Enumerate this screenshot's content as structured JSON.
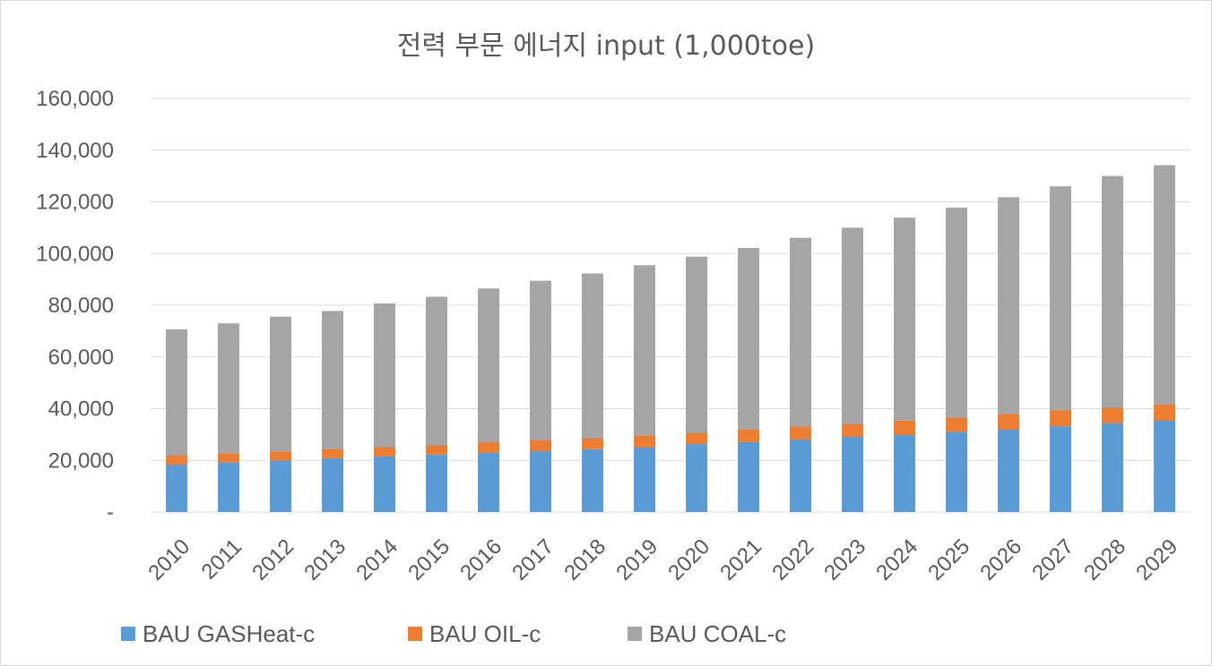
{
  "chart_data": {
    "type": "bar",
    "stacked": true,
    "title": "전력 부문 에너지 input (1,000toe)",
    "xlabel": "",
    "ylabel": "",
    "ylim": [
      0,
      160000
    ],
    "y_ticks": [
      0,
      20000,
      40000,
      60000,
      80000,
      100000,
      120000,
      140000,
      160000
    ],
    "y_tick_labels": [
      "-",
      "20,000",
      "40,000",
      "60,000",
      "80,000",
      "100,000",
      "120,000",
      "140,000",
      "160,000"
    ],
    "grid": true,
    "legend_position": "bottom",
    "categories": [
      "2010",
      "2011",
      "2012",
      "2013",
      "2014",
      "2015",
      "2016",
      "2017",
      "2018",
      "2019",
      "2020",
      "2021",
      "2022",
      "2023",
      "2024",
      "2025",
      "2026",
      "2027",
      "2028",
      "2029"
    ],
    "series": [
      {
        "name": "BAU GASHeat-c",
        "color": "#5b9bd5",
        "values": [
          18500,
          19300,
          20000,
          20800,
          21500,
          22200,
          23000,
          23700,
          24500,
          25300,
          26300,
          27300,
          28200,
          29100,
          30100,
          31100,
          32200,
          33200,
          34500,
          35500
        ]
      },
      {
        "name": "BAU OIL-c",
        "color": "#ed7d31",
        "values": [
          3500,
          3500,
          3500,
          3700,
          3800,
          3800,
          4000,
          4200,
          4300,
          4400,
          4500,
          4600,
          4900,
          5100,
          5300,
          5500,
          5800,
          6200,
          6000,
          6300
        ]
      },
      {
        "name": "BAU COAL-c",
        "color": "#a5a5a5",
        "values": [
          48700,
          50200,
          52100,
          53300,
          55400,
          57300,
          59500,
          61600,
          63500,
          65800,
          68000,
          70300,
          73000,
          75800,
          78500,
          81200,
          83800,
          86600,
          89500,
          92400
        ]
      }
    ]
  }
}
